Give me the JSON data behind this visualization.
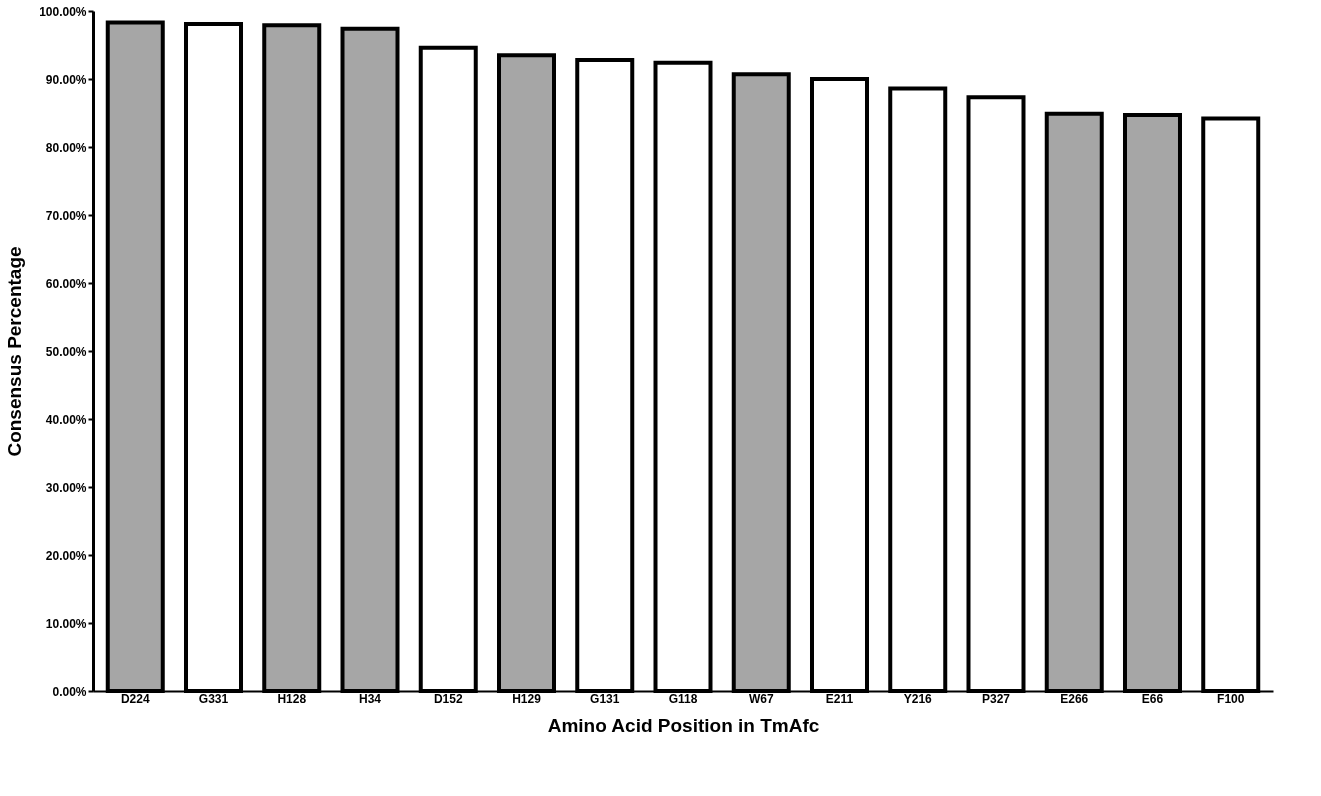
{
  "chart_data": {
    "type": "bar",
    "xlabel": "Amino Acid Position in TmAfc",
    "ylabel": "Consensus Percentage",
    "categories": [
      "D224",
      "G331",
      "H128",
      "H34",
      "D152",
      "H129",
      "G131",
      "G118",
      "W67",
      "E211",
      "Y216",
      "P327",
      "E266",
      "E66",
      "F100"
    ],
    "values": [
      98.3,
      98.1,
      97.9,
      97.4,
      94.6,
      93.5,
      92.8,
      92.4,
      90.7,
      90.0,
      88.6,
      87.3,
      84.9,
      84.7,
      84.2
    ],
    "colors": [
      "#a6a6a6",
      "#ffffff",
      "#a6a6a6",
      "#a6a6a6",
      "#ffffff",
      "#a6a6a6",
      "#ffffff",
      "#ffffff",
      "#a6a6a6",
      "#ffffff",
      "#ffffff",
      "#ffffff",
      "#a6a6a6",
      "#a6a6a6",
      "#ffffff"
    ],
    "ylim": [
      0,
      100
    ],
    "yticks": [
      {
        "value": 0,
        "label": "0.00%"
      },
      {
        "value": 10,
        "label": "10.00%"
      },
      {
        "value": 20,
        "label": "20.00%"
      },
      {
        "value": 30,
        "label": "30.00%"
      },
      {
        "value": 40,
        "label": "40.00%"
      },
      {
        "value": 50,
        "label": "50.00%"
      },
      {
        "value": 60,
        "label": "60.00%"
      },
      {
        "value": 70,
        "label": "70.00%"
      },
      {
        "value": 80,
        "label": "80.00%"
      },
      {
        "value": 90,
        "label": "90.00%"
      },
      {
        "value": 100,
        "label": "100.00%"
      }
    ],
    "grid": false
  }
}
